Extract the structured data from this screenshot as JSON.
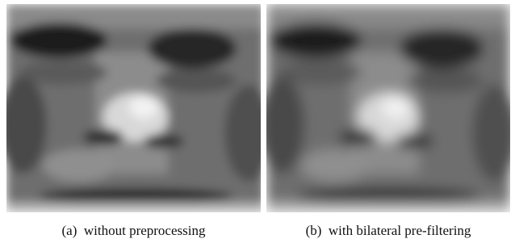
{
  "figures": [
    {
      "caption": "(a)  without preprocessing"
    },
    {
      "caption": "(b)  with bilateral pre-filtering"
    }
  ]
}
